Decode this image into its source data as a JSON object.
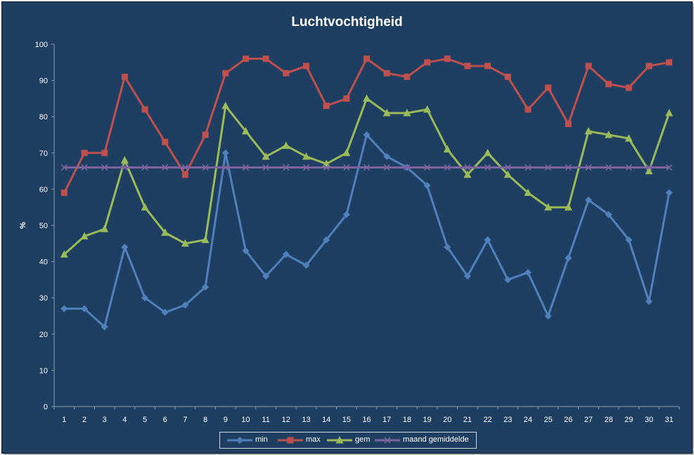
{
  "chart_data": {
    "type": "line",
    "title": "Luchtvochtigheid",
    "xlabel": "",
    "ylabel": "%",
    "ylim": [
      0,
      100
    ],
    "yticks": [
      "0",
      "10",
      "20",
      "30",
      "40",
      "50",
      "60",
      "70",
      "80",
      "90",
      "100"
    ],
    "categories": [
      "1",
      "2",
      "3",
      "4",
      "5",
      "6",
      "7",
      "8",
      "9",
      "10",
      "11",
      "12",
      "13",
      "14",
      "15",
      "16",
      "17",
      "18",
      "19",
      "20",
      "21",
      "22",
      "23",
      "24",
      "25",
      "26",
      "27",
      "28",
      "29",
      "30",
      "31"
    ],
    "grid": false,
    "legend_position": "bottom",
    "series": [
      {
        "name": "min",
        "color": "#4f81bd",
        "marker": "diamond",
        "values": [
          27,
          27,
          22,
          44,
          30,
          26,
          28,
          33,
          70,
          43,
          36,
          42,
          39,
          46,
          53,
          75,
          69,
          66,
          61,
          44,
          36,
          46,
          35,
          37,
          25,
          41,
          57,
          53,
          46,
          29,
          59
        ]
      },
      {
        "name": "max",
        "color": "#c0504d",
        "marker": "square",
        "values": [
          59,
          70,
          70,
          91,
          82,
          73,
          64,
          75,
          92,
          96,
          96,
          92,
          94,
          83,
          85,
          96,
          92,
          91,
          95,
          96,
          94,
          94,
          91,
          82,
          88,
          78,
          94,
          89,
          88,
          94,
          95
        ]
      },
      {
        "name": "gem",
        "color": "#9bbb59",
        "marker": "triangle",
        "values": [
          42,
          47,
          49,
          68,
          55,
          48,
          45,
          46,
          83,
          76,
          69,
          72,
          69,
          67,
          70,
          85,
          81,
          81,
          82,
          71,
          64,
          70,
          64,
          59,
          55,
          55,
          76,
          75,
          74,
          65,
          81
        ]
      },
      {
        "name": "maand gemiddelde",
        "color": "#8064a2",
        "marker": "x",
        "values": [
          66,
          66,
          66,
          66,
          66,
          66,
          66,
          66,
          66,
          66,
          66,
          66,
          66,
          66,
          66,
          66,
          66,
          66,
          66,
          66,
          66,
          66,
          66,
          66,
          66,
          66,
          66,
          66,
          66,
          66,
          66
        ]
      }
    ]
  }
}
